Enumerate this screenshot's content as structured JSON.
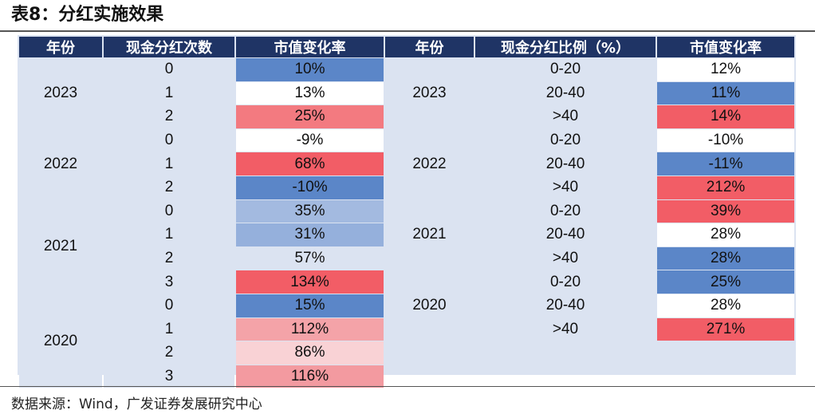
{
  "title": "表8：分红实施效果",
  "source": "数据来源：Wind，广发证券发展研究中心",
  "left_table": {
    "headers": [
      "年份",
      "现金分红次数",
      "市值变化率"
    ],
    "groups": [
      {
        "year": "2023",
        "rows": [
          {
            "count": "0",
            "rate": "10%",
            "color": "#5b86c8"
          },
          {
            "count": "1",
            "rate": "13%",
            "color": "#ffffff"
          },
          {
            "count": "2",
            "rate": "25%",
            "color": "#f37a80"
          }
        ]
      },
      {
        "year": "2022",
        "rows": [
          {
            "count": "0",
            "rate": "-9%",
            "color": "#ffffff"
          },
          {
            "count": "1",
            "rate": "68%",
            "color": "#f25d66"
          },
          {
            "count": "2",
            "rate": "-10%",
            "color": "#5b86c8"
          }
        ]
      },
      {
        "year": "2021",
        "rows": [
          {
            "count": "0",
            "rate": "35%",
            "color": "#a3bae0"
          },
          {
            "count": "1",
            "rate": "31%",
            "color": "#95b0dc"
          },
          {
            "count": "2",
            "rate": "57%",
            "color": "#dbe3f1"
          },
          {
            "count": "3",
            "rate": "134%",
            "color": "#f25d66"
          }
        ]
      },
      {
        "year": "2020",
        "rows": [
          {
            "count": "0",
            "rate": "15%",
            "color": "#5b86c8"
          },
          {
            "count": "1",
            "rate": "112%",
            "color": "#f4a3a8"
          },
          {
            "count": "2",
            "rate": "86%",
            "color": "#f9d2d5"
          },
          {
            "count": "3",
            "rate": "116%",
            "color": "#f39aa0"
          }
        ]
      }
    ]
  },
  "right_table": {
    "headers": [
      "年份",
      "现金分红比例（%）",
      "市值变化率"
    ],
    "groups": [
      {
        "year": "2023",
        "rows": [
          {
            "ratio": "0-20",
            "rate": "12%",
            "color": "#ffffff"
          },
          {
            "ratio": "20-40",
            "rate": "11%",
            "color": "#5b86c8"
          },
          {
            "ratio": ">40",
            "rate": "14%",
            "color": "#f25d66"
          }
        ]
      },
      {
        "year": "2022",
        "rows": [
          {
            "ratio": "0-20",
            "rate": "-10%",
            "color": "#ffffff"
          },
          {
            "ratio": "20-40",
            "rate": "-11%",
            "color": "#5b86c8"
          },
          {
            "ratio": ">40",
            "rate": "212%",
            "color": "#f25d66"
          }
        ]
      },
      {
        "year": "2021",
        "rows": [
          {
            "ratio": "0-20",
            "rate": "39%",
            "color": "#f25d66"
          },
          {
            "ratio": "20-40",
            "rate": "28%",
            "color": "#ffffff"
          },
          {
            "ratio": ">40",
            "rate": "28%",
            "color": "#5b86c8"
          }
        ]
      },
      {
        "year": "2020",
        "rows": [
          {
            "ratio": "0-20",
            "rate": "25%",
            "color": "#5b86c8"
          },
          {
            "ratio": "20-40",
            "rate": "28%",
            "color": "#ffffff"
          },
          {
            "ratio": ">40",
            "rate": "271%",
            "color": "#f25d66"
          }
        ]
      }
    ]
  }
}
